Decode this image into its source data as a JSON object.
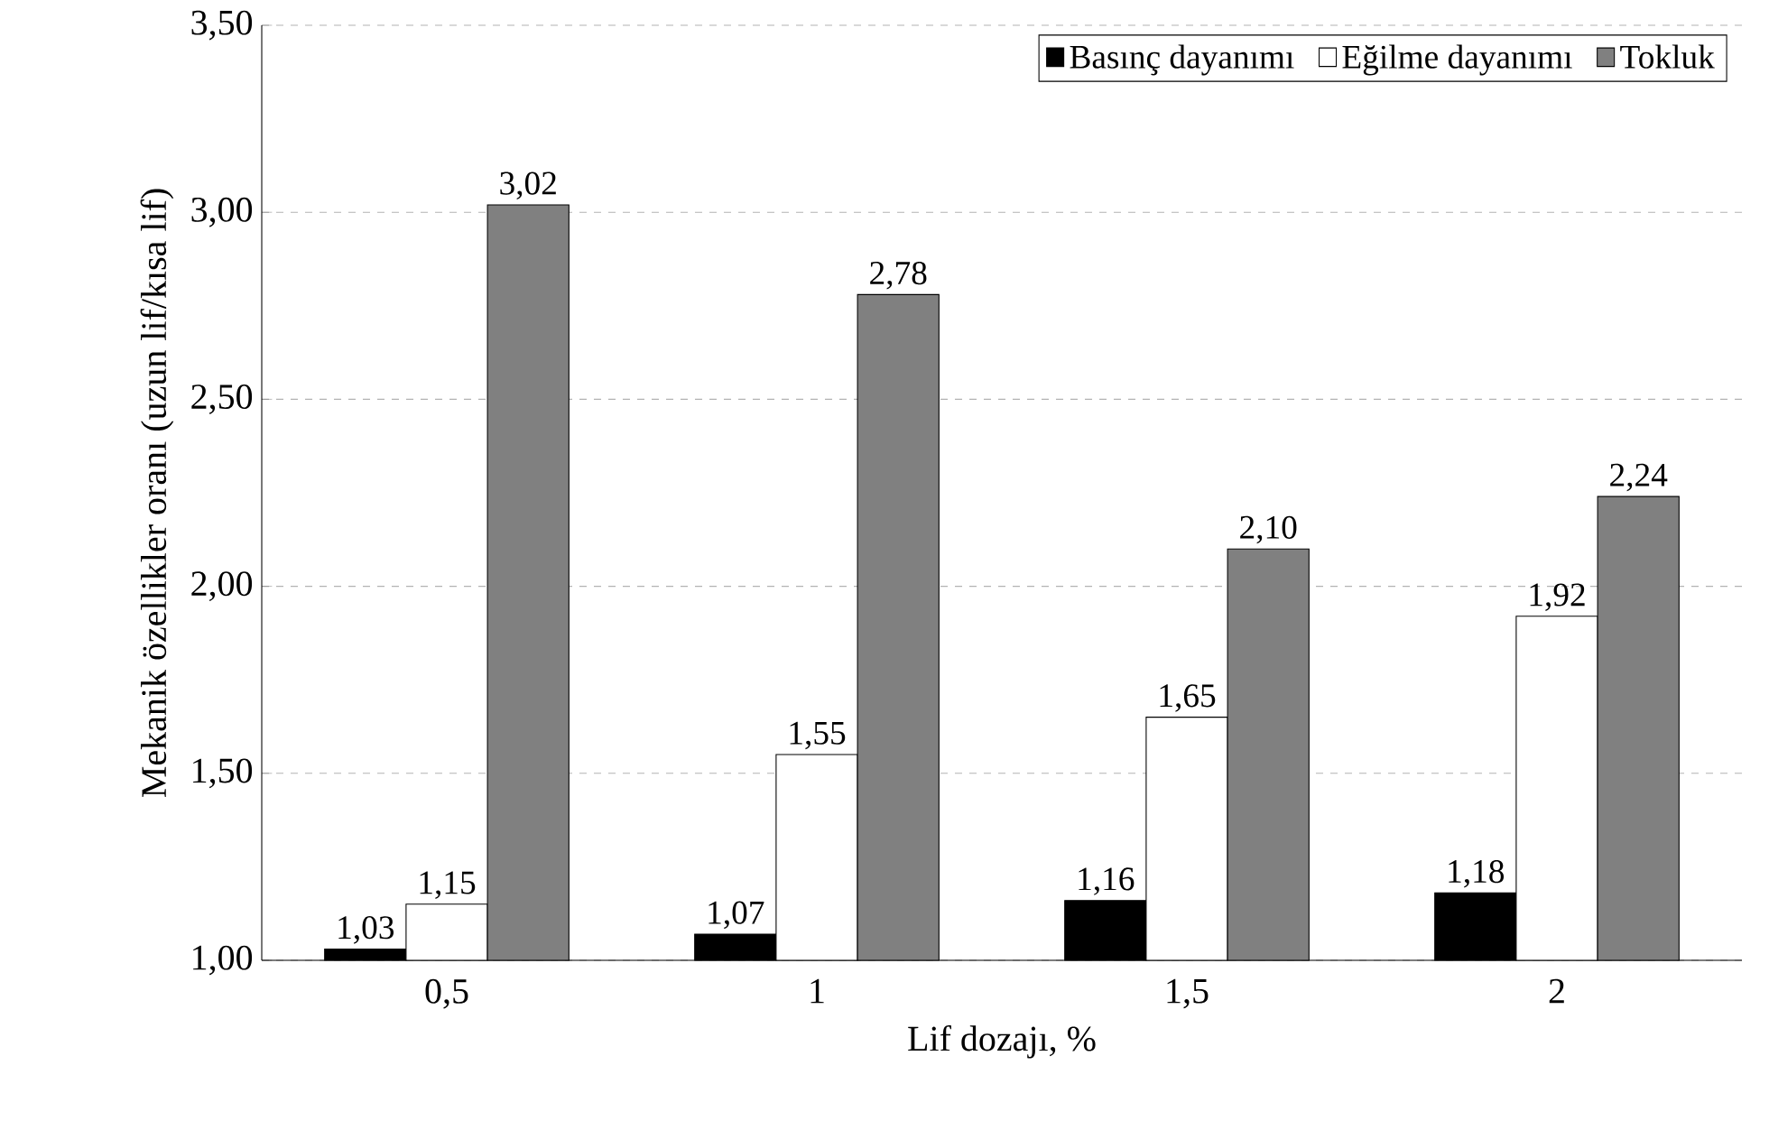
{
  "chart_data": {
    "type": "bar",
    "xlabel": "Lif dozajı, %",
    "ylabel": "Mekanik özellikler oranı (uzun lif/kısa lif)",
    "categories": [
      "0,5",
      "1",
      "1,5",
      "2"
    ],
    "series": [
      {
        "name": "Basınç dayanımı",
        "color": "#000000",
        "values": [
          1.03,
          1.07,
          1.16,
          1.18
        ],
        "value_labels": [
          "1,03",
          "1,07",
          "1,16",
          "1,18"
        ]
      },
      {
        "name": "Eğilme dayanımı",
        "color": "#ffffff",
        "values": [
          1.15,
          1.55,
          1.65,
          1.92
        ],
        "value_labels": [
          "1,15",
          "1,55",
          "1,65",
          "1,92"
        ]
      },
      {
        "name": "Tokluk",
        "color": "#808080",
        "values": [
          3.02,
          2.78,
          2.1,
          2.24
        ],
        "value_labels": [
          "3,02",
          "2,78",
          "2,10",
          "2,24"
        ]
      }
    ],
    "ylim": [
      1.0,
      3.5
    ],
    "yticks": [
      {
        "value": 1.0,
        "label": "1,00"
      },
      {
        "value": 1.5,
        "label": "1,50"
      },
      {
        "value": 2.0,
        "label": "2,00"
      },
      {
        "value": 2.5,
        "label": "2,50"
      },
      {
        "value": 3.0,
        "label": "3,00"
      },
      {
        "value": 3.5,
        "label": "3,50"
      }
    ],
    "grid": "y",
    "legend": "top right"
  }
}
